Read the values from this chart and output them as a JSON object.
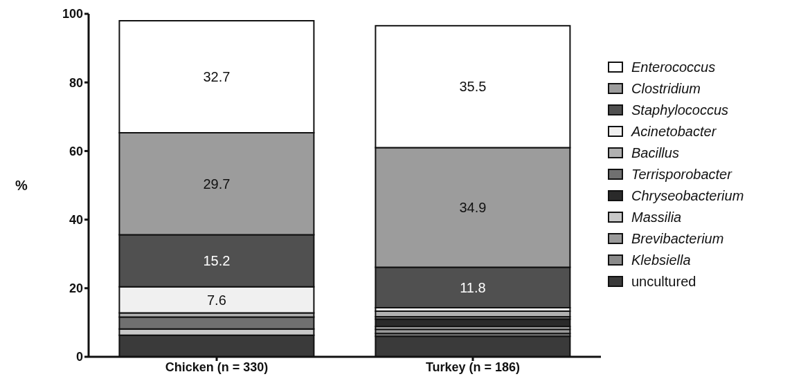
{
  "chart_data": {
    "type": "bar",
    "stacked": true,
    "ylabel": "%",
    "categories": [
      "Chicken (n = 330)",
      "Turkey (n = 186)"
    ],
    "ylim": [
      0,
      100
    ],
    "yticks": [
      0,
      20,
      40,
      60,
      80,
      100
    ],
    "grid": false,
    "legend": "right",
    "series": [
      {
        "name": "uncultured",
        "color": "#3a3a3a",
        "values": [
          6.3,
          6.0
        ],
        "value_labels": [
          null,
          null
        ]
      },
      {
        "name": "Klebsiella",
        "color": "#8a8a8a",
        "values": [
          0,
          0.8
        ],
        "value_labels": [
          null,
          null
        ]
      },
      {
        "name": "Brevibacterium",
        "color": "#9a9a9a",
        "values": [
          0,
          1.2
        ],
        "value_labels": [
          null,
          null
        ]
      },
      {
        "name": "Massilia",
        "color": "#c8c8c8",
        "values": [
          1.8,
          0.8
        ],
        "value_labels": [
          null,
          null
        ]
      },
      {
        "name": "Chryseobacterium",
        "color": "#2a2a2a",
        "values": [
          0,
          2.2
        ],
        "value_labels": [
          null,
          null
        ]
      },
      {
        "name": "Terrisporobacter",
        "color": "#707070",
        "values": [
          3.5,
          0.7
        ],
        "value_labels": [
          null,
          null
        ]
      },
      {
        "name": "Bacillus",
        "color": "#b0b0b0",
        "values": [
          1.2,
          1.6
        ],
        "value_labels": [
          null,
          null
        ]
      },
      {
        "name": "Acinetobacter",
        "color": "#f0f0f0",
        "values": [
          7.6,
          1.0
        ],
        "value_labels": [
          "7.6",
          null
        ]
      },
      {
        "name": "Staphylococcus",
        "color": "#505050",
        "values": [
          15.2,
          11.8
        ],
        "value_labels": [
          "15.2",
          "11.8"
        ]
      },
      {
        "name": "Clostridium",
        "color": "#9c9c9c",
        "values": [
          29.7,
          34.9
        ],
        "value_labels": [
          "29.7",
          "34.9"
        ]
      },
      {
        "name": "Enterococcus",
        "color": "#ffffff",
        "values": [
          32.7,
          35.5
        ],
        "value_labels": [
          "32.7",
          "35.5"
        ]
      }
    ]
  }
}
